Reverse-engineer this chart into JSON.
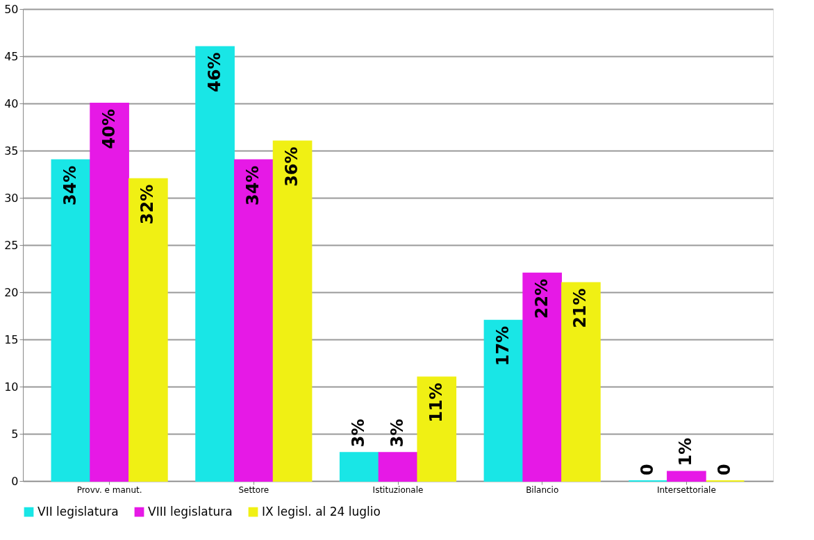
{
  "chart_data": {
    "type": "bar",
    "categories": [
      "Provv. e manut.",
      "Settore",
      "Istituzionale",
      "Bilancio",
      "Intersettoriale"
    ],
    "series": [
      {
        "name": "VII legislatura",
        "color": "#19e6e6",
        "values": [
          34,
          46,
          3,
          17,
          0
        ],
        "value_labels": [
          "34%",
          "46%",
          "3%",
          "17%",
          "0"
        ]
      },
      {
        "name": "VIII legislatura",
        "color": "#e619e6",
        "values": [
          40,
          34,
          3,
          22,
          1
        ],
        "value_labels": [
          "40%",
          "34%",
          "3%",
          "22%",
          "1%"
        ]
      },
      {
        "name": "IX legisl. al 24 luglio",
        "color": "#f0f014",
        "values": [
          32,
          36,
          11,
          21,
          0
        ],
        "value_labels": [
          "32%",
          "36%",
          "11%",
          "21%",
          "0"
        ]
      }
    ],
    "ylim": [
      0,
      50
    ],
    "yticks": [
      0,
      5,
      10,
      15,
      20,
      25,
      30,
      35,
      40,
      45,
      50
    ],
    "grid": "y",
    "legend": "bottom"
  }
}
